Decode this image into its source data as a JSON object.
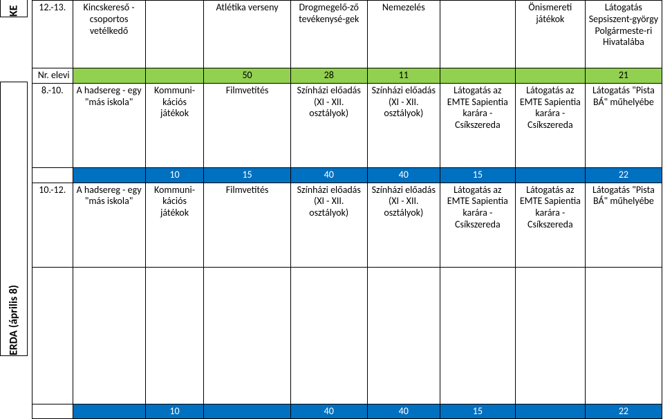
{
  "sidebar": {
    "top_label": "KE",
    "bottom_label": "ERDA (április 8)"
  },
  "rows": [
    {
      "kind": "content",
      "cells": [
        "12.-13.",
        "Kincskereső - csoportos vetélkedő",
        "",
        "Atlétika verseny",
        "Drogmegelő-ző tevékenysé-gek",
        "Nemezelés",
        "",
        "Önismereti játékok",
        "Látogatás Sepsiszent-györgy Polgármeste-ri Hivatalába"
      ]
    },
    {
      "kind": "num-green",
      "label": "Nr. elevi",
      "values": [
        "",
        "",
        "50",
        "28",
        "11",
        "",
        "",
        "21"
      ]
    },
    {
      "kind": "content2",
      "cells": [
        "8.-10.",
        "A hadsereg - egy \"más iskola\"",
        "Kommuni-kációs játékok",
        "Filmvetítés",
        "Színházi előadás (XI - XII. osztályok)",
        "Színházi előadás (XI - XII. osztályok)",
        "Látogatás az EMTE Sapientia karára - Csíkszereda",
        "Látogatás az EMTE Sapientia karára - Csíkszereda",
        "Látogatás \"Pista BÁ\" műhelyébe"
      ]
    },
    {
      "kind": "num-blue",
      "label": "Nr. elevi",
      "values": [
        "",
        "10",
        "15",
        "40",
        "40",
        "15",
        "",
        "22"
      ]
    },
    {
      "kind": "content2",
      "cells": [
        "10.-12.",
        "A hadsereg - egy \"más iskola\"",
        "Kommuni-kációs játékok",
        "Filmvetítés",
        "Színházi előadás (XI - XII. osztályok)",
        "Színházi előadás (XI - XII. osztályok)",
        "Látogatás az EMTE Sapientia karára - Csíkszereda",
        "Látogatás az EMTE Sapientia karára - Csíkszereda",
        "Látogatás \"Pista BÁ\" műhelyébe"
      ]
    },
    {
      "kind": "spacer"
    },
    {
      "kind": "num-blue",
      "label": "Nr. elevi",
      "values": [
        "",
        "10",
        "",
        "40",
        "40",
        "15",
        "",
        "22"
      ]
    }
  ]
}
